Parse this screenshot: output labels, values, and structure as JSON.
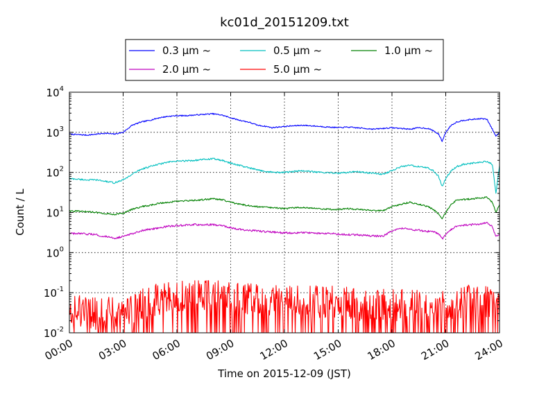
{
  "chart_data": {
    "type": "line",
    "title": "kc01d_20151209.txt",
    "xlabel": "Time on 2015-12-09 (JST)",
    "ylabel": "Count / L",
    "xlim": [
      0,
      24
    ],
    "ylim": [
      0.01,
      10000
    ],
    "yscale": "log",
    "grid": true,
    "legend_position": "top-center",
    "x_ticks": [
      {
        "value": 0,
        "label": "00:00"
      },
      {
        "value": 3,
        "label": "03:00"
      },
      {
        "value": 6,
        "label": "06:00"
      },
      {
        "value": 9,
        "label": "09:00"
      },
      {
        "value": 12,
        "label": "12:00"
      },
      {
        "value": 15,
        "label": "15:00"
      },
      {
        "value": 18,
        "label": "18:00"
      },
      {
        "value": 21,
        "label": "21:00"
      },
      {
        "value": 24,
        "label": "24:00"
      }
    ],
    "y_ticks": [
      {
        "value": 0.01,
        "base": "10",
        "exp": "-2"
      },
      {
        "value": 0.1,
        "base": "10",
        "exp": "-1"
      },
      {
        "value": 1,
        "base": "10",
        "exp": "0"
      },
      {
        "value": 10,
        "base": "10",
        "exp": "1"
      },
      {
        "value": 100,
        "base": "10",
        "exp": "2"
      },
      {
        "value": 1000,
        "base": "10",
        "exp": "3"
      },
      {
        "value": 10000,
        "base": "10",
        "exp": "4"
      }
    ],
    "series": [
      {
        "name": "0.3 μm ~",
        "color": "#0000ff",
        "x": [
          0,
          1,
          1.5,
          2,
          2.5,
          3,
          3.5,
          4,
          4.5,
          5,
          5.5,
          6,
          6.5,
          7,
          7.5,
          8,
          8.5,
          9,
          9.5,
          10,
          10.5,
          11,
          11.3,
          11.6,
          12,
          12.5,
          13,
          13.5,
          14,
          14.5,
          15,
          15.5,
          16,
          16.5,
          17,
          17.5,
          18,
          18.5,
          19,
          19.5,
          20,
          20.3,
          20.6,
          20.8,
          21,
          21.3,
          21.6,
          22,
          22.5,
          23,
          23.3,
          23.6,
          23.8,
          24
        ],
        "values": [
          900,
          850,
          900,
          950,
          900,
          1000,
          1500,
          1800,
          2000,
          2300,
          2500,
          2600,
          2600,
          2700,
          2800,
          2900,
          2700,
          2300,
          2000,
          1800,
          1500,
          1400,
          1300,
          1350,
          1400,
          1450,
          1500,
          1450,
          1400,
          1350,
          1300,
          1350,
          1300,
          1250,
          1200,
          1250,
          1300,
          1250,
          1200,
          1300,
          1250,
          1100,
          900,
          600,
          1000,
          1500,
          1800,
          2000,
          2100,
          2200,
          2100,
          1200,
          800,
          1000
        ]
      },
      {
        "name": "0.5 μm ~",
        "color": "#00bfbf",
        "x": [
          0,
          1,
          1.5,
          2,
          2.5,
          3,
          3.5,
          4,
          4.5,
          5,
          5.5,
          6,
          6.5,
          7,
          7.5,
          8,
          8.5,
          9,
          9.5,
          10,
          10.5,
          11,
          11.5,
          12,
          12.5,
          13,
          13.5,
          14,
          14.5,
          15,
          15.5,
          16,
          16.5,
          17,
          17.5,
          18,
          18.5,
          19,
          19.5,
          20,
          20.3,
          20.6,
          20.8,
          21,
          21.3,
          21.6,
          22,
          22.5,
          23,
          23.3,
          23.6,
          23.8,
          24
        ],
        "values": [
          70,
          65,
          65,
          60,
          55,
          65,
          90,
          120,
          140,
          160,
          180,
          190,
          195,
          200,
          210,
          220,
          200,
          170,
          150,
          130,
          115,
          105,
          100,
          100,
          105,
          110,
          105,
          100,
          100,
          95,
          100,
          105,
          100,
          95,
          90,
          110,
          140,
          150,
          140,
          130,
          110,
          80,
          45,
          70,
          110,
          140,
          160,
          170,
          180,
          190,
          160,
          30,
          150
        ]
      },
      {
        "name": "1.0 μm ~",
        "color": "#008000",
        "x": [
          0,
          1,
          1.5,
          2,
          2.5,
          3,
          3.5,
          4,
          4.5,
          5,
          5.5,
          6,
          6.5,
          7,
          7.5,
          8,
          8.5,
          9,
          9.5,
          10,
          10.5,
          11,
          11.5,
          12,
          12.5,
          13,
          13.5,
          14,
          14.5,
          15,
          15.5,
          16,
          16.5,
          17,
          17.5,
          18,
          18.5,
          19,
          19.5,
          20,
          20.3,
          20.6,
          20.8,
          21,
          21.3,
          21.6,
          22,
          22.5,
          23,
          23.3,
          23.6,
          23.8,
          24
        ],
        "values": [
          11,
          10.5,
          10,
          9.5,
          9,
          9.5,
          12,
          14,
          15,
          17,
          18,
          19,
          19.5,
          20,
          21,
          22,
          21,
          18,
          16,
          15,
          14,
          13.5,
          13,
          12.5,
          13,
          13.5,
          13,
          12.5,
          12,
          12,
          12.5,
          12,
          11.5,
          11,
          11,
          14,
          16,
          18,
          16,
          14,
          12,
          9,
          7,
          10,
          16,
          20,
          21,
          22,
          23,
          24,
          18,
          10,
          16
        ]
      },
      {
        "name": "2.0 μm ~",
        "color": "#bf00bf",
        "x": [
          0,
          1,
          1.5,
          2,
          2.5,
          3,
          3.5,
          4,
          4.5,
          5,
          5.5,
          6,
          6.5,
          7,
          7.5,
          8,
          8.5,
          9,
          9.5,
          10,
          10.5,
          11,
          11.5,
          12,
          12.5,
          13,
          13.5,
          14,
          14.5,
          15,
          15.5,
          16,
          16.5,
          17,
          17.5,
          18,
          18.5,
          19,
          19.5,
          20,
          20.3,
          20.6,
          20.8,
          21,
          21.3,
          21.6,
          22,
          22.5,
          23,
          23.3,
          23.6,
          23.8,
          24
        ],
        "values": [
          3,
          2.9,
          2.8,
          2.5,
          2.3,
          2.5,
          3,
          3.5,
          3.8,
          4.2,
          4.5,
          4.7,
          4.8,
          5,
          4.9,
          5,
          4.7,
          4.2,
          3.8,
          3.6,
          3.5,
          3.3,
          3.2,
          3.1,
          3.1,
          3.2,
          3.1,
          3,
          3,
          2.9,
          2.8,
          2.8,
          2.7,
          2.6,
          2.6,
          3.5,
          4,
          3.8,
          3.6,
          3.4,
          3.3,
          3,
          2.2,
          2.8,
          3.8,
          4.5,
          4.8,
          5,
          5.2,
          5.5,
          4.5,
          2.5,
          3
        ]
      },
      {
        "name": "5.0 μm ~",
        "color": "#ff0000",
        "x": [
          0,
          1,
          2,
          3,
          4,
          5,
          6,
          7,
          8,
          9,
          10,
          11,
          12,
          13,
          14,
          15,
          16,
          17,
          18,
          19,
          20,
          21,
          22,
          23,
          24
        ],
        "values": [
          0.04,
          0.03,
          0.03,
          0.035,
          0.05,
          0.07,
          0.08,
          0.09,
          0.09,
          0.08,
          0.07,
          0.07,
          0.06,
          0.06,
          0.06,
          0.06,
          0.05,
          0.05,
          0.05,
          0.05,
          0.05,
          0.05,
          0.06,
          0.07,
          0.04
        ]
      }
    ],
    "legend": {
      "columns": 3
    }
  }
}
